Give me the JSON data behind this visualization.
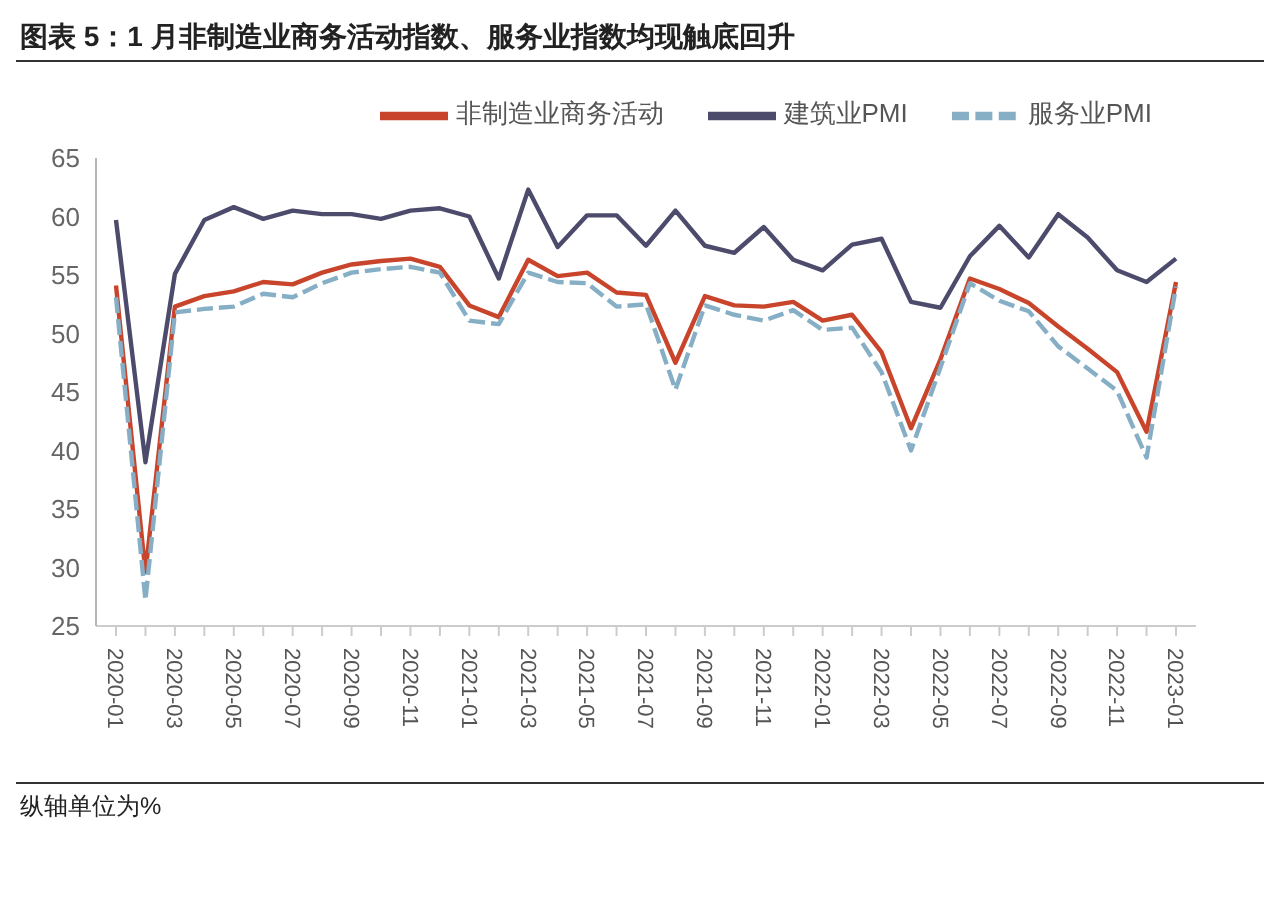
{
  "chart_data": {
    "type": "line",
    "title": "图表 5：1 月非制造业商务活动指数、服务业指数均现触底回升",
    "annotations": [
      "纵轴单位为%"
    ],
    "categories": [
      "2020-01",
      null,
      "2020-03",
      null,
      "2020-05",
      null,
      "2020-07",
      null,
      "2020-09",
      null,
      "2020-11",
      null,
      "2021-01",
      null,
      "2021-03",
      null,
      "2021-05",
      null,
      "2021-07",
      null,
      "2021-09",
      null,
      "2021-11",
      null,
      "2022-01",
      null,
      "2022-03",
      null,
      "2022-05",
      null,
      "2022-07",
      null,
      "2022-09",
      null,
      "2022-11",
      null,
      "2023-01"
    ],
    "series": [
      {
        "name": "非制造业商务活动",
        "color": "#c8452c",
        "line_style": "solid",
        "values": [
          54.1,
          29.6,
          52.3,
          53.2,
          53.6,
          54.4,
          54.2,
          55.2,
          55.9,
          56.2,
          56.4,
          55.7,
          52.4,
          51.4,
          56.3,
          54.9,
          55.2,
          53.5,
          53.3,
          47.5,
          53.2,
          52.4,
          52.3,
          52.7,
          51.1,
          51.6,
          48.4,
          41.9,
          47.8,
          54.7,
          53.8,
          52.6,
          50.6,
          48.7,
          46.7,
          41.6,
          54.4
        ]
      },
      {
        "name": "建筑业PMI",
        "color": "#4c4b6c",
        "line_style": "solid",
        "values": [
          59.7,
          39.0,
          55.1,
          59.7,
          60.8,
          59.8,
          60.5,
          60.2,
          60.2,
          59.8,
          60.5,
          60.7,
          60.0,
          54.7,
          62.3,
          57.4,
          60.1,
          60.1,
          57.5,
          60.5,
          57.5,
          56.9,
          59.1,
          56.3,
          55.4,
          57.6,
          58.1,
          52.7,
          52.2,
          56.6,
          59.2,
          56.5,
          60.2,
          58.2,
          55.4,
          54.4,
          56.4
        ]
      },
      {
        "name": "服务业PMI",
        "color": "#86afc6",
        "line_style": "dashed",
        "values": [
          53.1,
          27.2,
          51.8,
          52.1,
          52.3,
          53.4,
          53.1,
          54.3,
          55.2,
          55.5,
          55.7,
          55.2,
          51.1,
          50.8,
          55.2,
          54.4,
          54.3,
          52.3,
          52.5,
          45.2,
          52.4,
          51.6,
          51.1,
          52.0,
          50.3,
          50.5,
          46.7,
          40.0,
          47.1,
          54.3,
          52.8,
          51.9,
          48.9,
          47.0,
          45.1,
          39.4,
          54.0
        ]
      }
    ],
    "ylim": [
      25,
      65
    ],
    "yticks": [
      25,
      30,
      35,
      40,
      45,
      50,
      55,
      60,
      65
    ],
    "grid": false,
    "legend": "top right",
    "marker": "none"
  }
}
